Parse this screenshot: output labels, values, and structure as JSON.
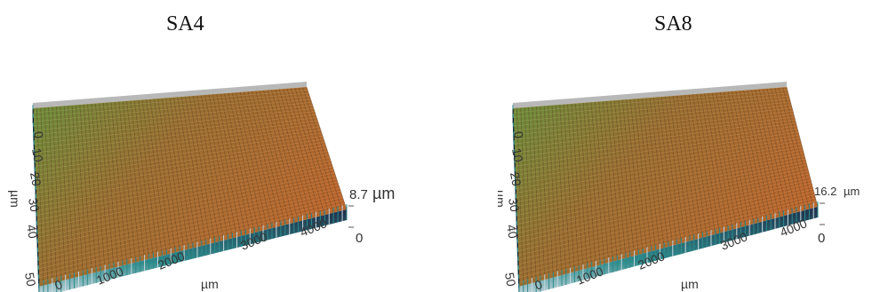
{
  "panels": [
    {
      "title": "SA4",
      "y_axis": {
        "label": "µm",
        "ticks": [
          "0",
          "10",
          "20",
          "30",
          "40",
          "50"
        ]
      },
      "x_axis": {
        "label": "µm",
        "ticks": [
          "0",
          "1000",
          "2000",
          "3000",
          "4000"
        ]
      },
      "z_axis": {
        "max_value": "8.7",
        "max_unit": "µm",
        "min_value": "0"
      }
    },
    {
      "title": "SA8",
      "y_axis": {
        "label": "µm",
        "ticks": [
          "0",
          "10",
          "20",
          "30",
          "40",
          "50"
        ]
      },
      "x_axis": {
        "label": "µm",
        "ticks": [
          "0",
          "1000",
          "2000",
          "3000",
          "4000"
        ]
      },
      "z_axis": {
        "max_value": "16.2",
        "max_unit": "µm",
        "min_value": "0"
      }
    }
  ],
  "colors": {
    "surface_top": "#c0622a",
    "surface_green": "#6f8a3a",
    "pillar_dark": "#1f2f4a",
    "pillar_teal": "#2e8b8b",
    "pillar_light": "#c8d8e0",
    "base_gray": "#b8b8b8"
  }
}
